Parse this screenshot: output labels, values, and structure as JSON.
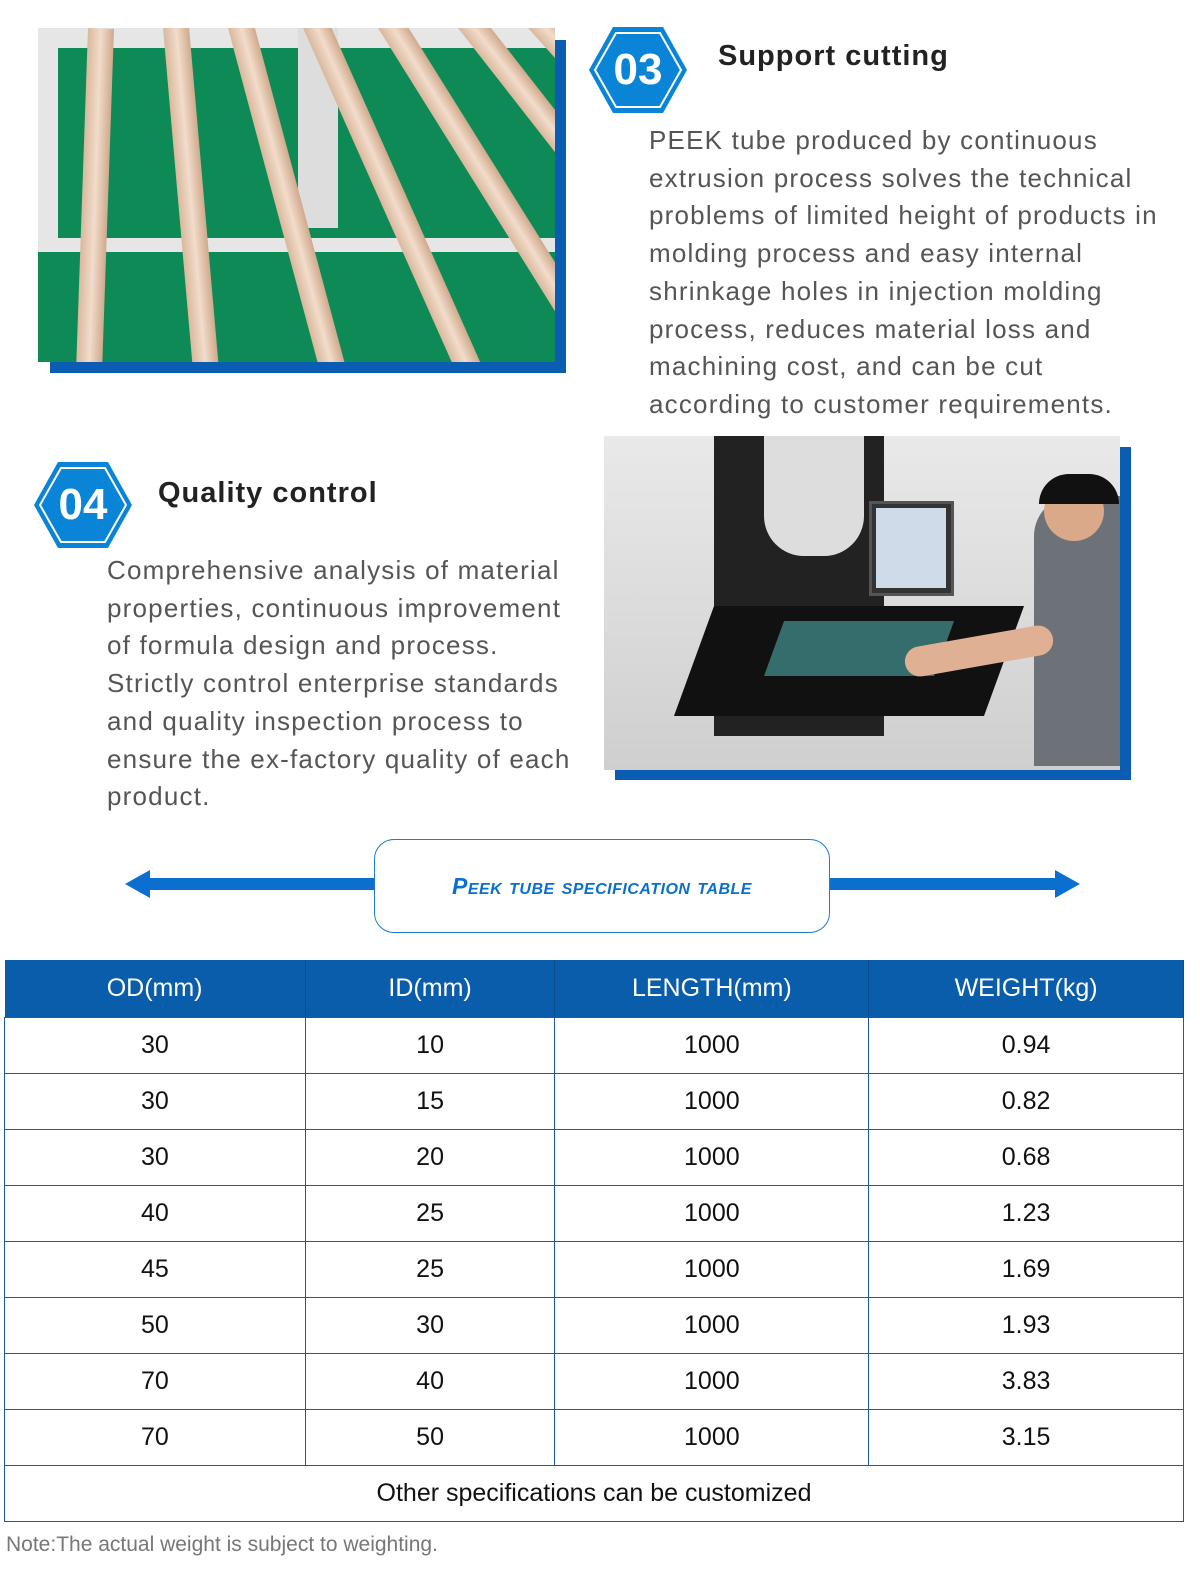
{
  "sections": [
    {
      "number": "03",
      "title": "Support cutting",
      "text": "PEEK tube produced by continuous extrusion process solves the technical problems of limited height of products in molding process and easy internal shrinkage holes in injection molding process, reduces material loss and machining cost, and can be cut according to customer requirements."
    },
    {
      "number": "04",
      "title": "Quality control",
      "text": "Comprehensive analysis of material properties, continuous improvement of formula design and process. Strictly control enterprise standards and quality inspection process to ensure the ex-factory quality of each product."
    }
  ],
  "spec_title": "Peek tube specification table",
  "table": {
    "headers": [
      "OD(mm)",
      "ID(mm)",
      "LENGTH(mm)",
      "WEIGHT(kg)"
    ],
    "rows": [
      [
        "30",
        "10",
        "1000",
        "0.94"
      ],
      [
        "30",
        "15",
        "1000",
        "0.82"
      ],
      [
        "30",
        "20",
        "1000",
        "0.68"
      ],
      [
        "40",
        "25",
        "1000",
        "1.23"
      ],
      [
        "45",
        "25",
        "1000",
        "1.69"
      ],
      [
        "50",
        "30",
        "1000",
        "1.93"
      ],
      [
        "70",
        "40",
        "1000",
        "3.83"
      ],
      [
        "70",
        "50",
        "1000",
        "3.15"
      ]
    ],
    "footer": "Other specifications can be customized"
  },
  "note": "Note:The actual weight is subject to weighting.",
  "colors": {
    "brand_blue": "#0a6fcf",
    "header_blue": "#0a5daa"
  }
}
